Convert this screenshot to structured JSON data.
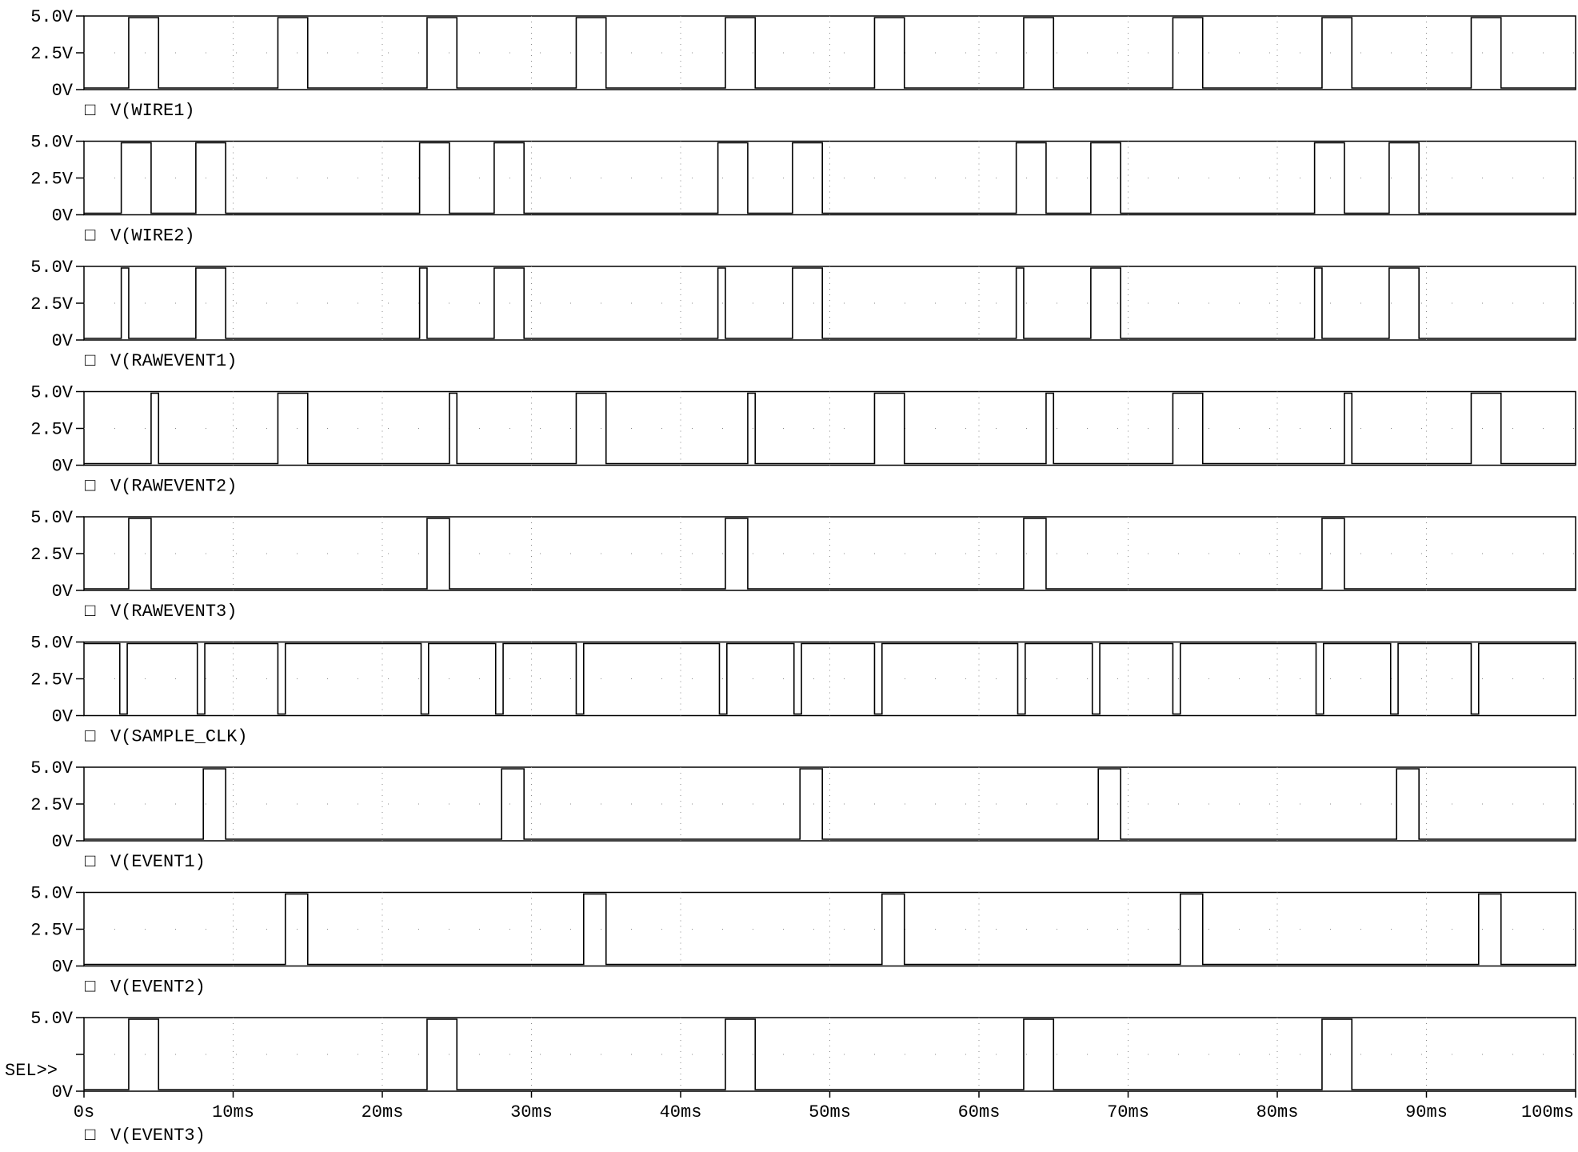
{
  "chart_data": {
    "type": "line",
    "x_unit": "ms",
    "xlim": [
      0,
      100
    ],
    "ylim": [
      0,
      5
    ],
    "y_tick_labels": [
      "5.0V",
      "2.5V",
      "0V"
    ],
    "x_tick_labels": [
      "0s",
      "10ms",
      "20ms",
      "30ms",
      "40ms",
      "50ms",
      "60ms",
      "70ms",
      "80ms",
      "90ms",
      "100ms"
    ],
    "grid": "dotted",
    "selected_marker": "SEL>>",
    "legend_marker": "□",
    "series": [
      {
        "name": "V(WIRE1)",
        "high_intervals_ms": [
          [
            3,
            5
          ],
          [
            13,
            15
          ],
          [
            23,
            25
          ],
          [
            33,
            35
          ],
          [
            43,
            45
          ],
          [
            53,
            55
          ],
          [
            63,
            65
          ],
          [
            73,
            75
          ],
          [
            83,
            85
          ],
          [
            93,
            95
          ]
        ]
      },
      {
        "name": "V(WIRE2)",
        "high_intervals_ms": [
          [
            2.5,
            4.5
          ],
          [
            7.5,
            9.5
          ],
          [
            22.5,
            24.5
          ],
          [
            27.5,
            29.5
          ],
          [
            42.5,
            44.5
          ],
          [
            47.5,
            49.5
          ],
          [
            62.5,
            64.5
          ],
          [
            67.5,
            69.5
          ],
          [
            82.5,
            84.5
          ],
          [
            87.5,
            89.5
          ]
        ]
      },
      {
        "name": "V(RAWEVENT1)",
        "high_intervals_ms": [
          [
            2.5,
            3
          ],
          [
            7.5,
            9.5
          ],
          [
            22.5,
            23
          ],
          [
            27.5,
            29.5
          ],
          [
            42.5,
            43
          ],
          [
            47.5,
            49.5
          ],
          [
            62.5,
            63
          ],
          [
            67.5,
            69.5
          ],
          [
            82.5,
            83
          ],
          [
            87.5,
            89.5
          ]
        ]
      },
      {
        "name": "V(RAWEVENT2)",
        "high_intervals_ms": [
          [
            4.5,
            5
          ],
          [
            13,
            15
          ],
          [
            24.5,
            25
          ],
          [
            33,
            35
          ],
          [
            44.5,
            45
          ],
          [
            53,
            55
          ],
          [
            64.5,
            65
          ],
          [
            73,
            75
          ],
          [
            84.5,
            85
          ],
          [
            93,
            95
          ]
        ]
      },
      {
        "name": "V(RAWEVENT3)",
        "high_intervals_ms": [
          [
            3,
            4.5
          ],
          [
            23,
            24.5
          ],
          [
            43,
            44.5
          ],
          [
            63,
            64.5
          ],
          [
            83,
            84.5
          ]
        ]
      },
      {
        "name": "V(SAMPLE_CLK)",
        "low_intervals_ms": [
          [
            2.4,
            2.9
          ],
          [
            7.6,
            8.1
          ],
          [
            13,
            13.5
          ],
          [
            22.6,
            23.1
          ],
          [
            27.6,
            28.1
          ],
          [
            33,
            33.5
          ],
          [
            42.6,
            43.1
          ],
          [
            47.6,
            48.1
          ],
          [
            53,
            53.5
          ],
          [
            62.6,
            63.1
          ],
          [
            67.6,
            68.1
          ],
          [
            73,
            73.5
          ],
          [
            82.6,
            83.1
          ],
          [
            87.6,
            88.1
          ],
          [
            93,
            93.5
          ]
        ]
      },
      {
        "name": "V(EVENT1)",
        "high_intervals_ms": [
          [
            8,
            9.5
          ],
          [
            28,
            29.5
          ],
          [
            48,
            49.5
          ],
          [
            68,
            69.5
          ],
          [
            88,
            89.5
          ]
        ]
      },
      {
        "name": "V(EVENT2)",
        "high_intervals_ms": [
          [
            13.5,
            15
          ],
          [
            33.5,
            35
          ],
          [
            53.5,
            55
          ],
          [
            73.5,
            75
          ],
          [
            93.5,
            95
          ]
        ]
      },
      {
        "name": "V(EVENT3)",
        "high_intervals_ms": [
          [
            3,
            5
          ],
          [
            23,
            25
          ],
          [
            43,
            45
          ],
          [
            63,
            65
          ],
          [
            83,
            85
          ]
        ]
      }
    ]
  }
}
